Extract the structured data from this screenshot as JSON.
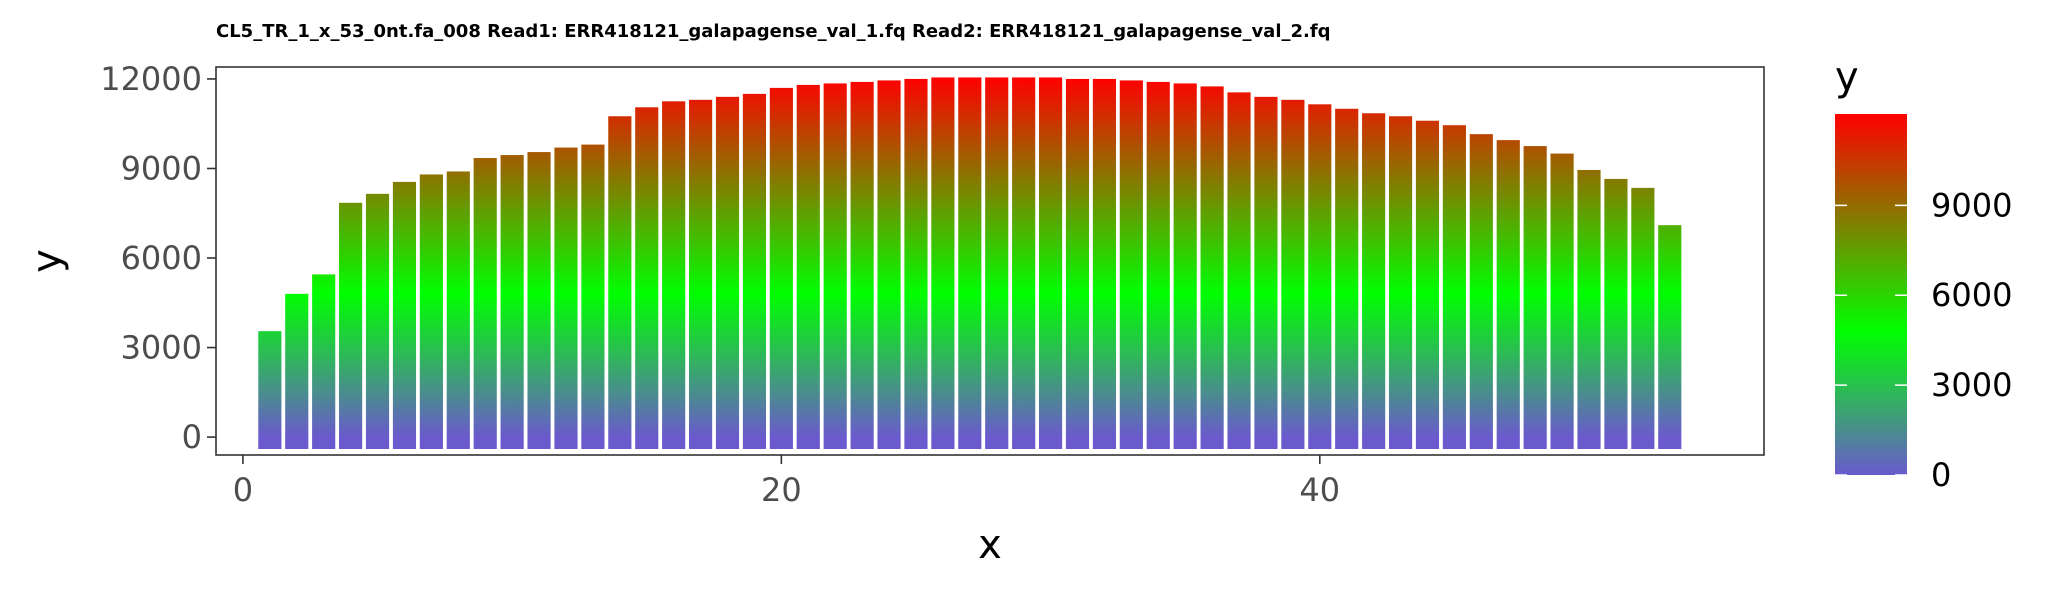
{
  "chart_data": {
    "type": "bar",
    "title": "CL5_TR_1_x_53_0nt.fa_008 Read1: ERR418121_galapagense_val_1.fq Read2: ERR418121_galapagense_val_2.fq",
    "xlabel": "x",
    "ylabel": "y",
    "xlim": [
      -1,
      56.5
    ],
    "ylim": [
      -600,
      12400
    ],
    "xticks": [
      0,
      20,
      40
    ],
    "yticks": [
      0,
      3000,
      6000,
      9000,
      12000
    ],
    "grid": false,
    "legend": {
      "title": "y",
      "position": "right",
      "type": "colorbar",
      "ticks": [
        0,
        3000,
        6000,
        9000
      ]
    },
    "color_scale": {
      "low": "#6a5acd",
      "mid": "#00ff00",
      "high": "#ff0000",
      "midpoint": 4800
    },
    "x": [
      1,
      2,
      3,
      4,
      5,
      6,
      7,
      8,
      9,
      10,
      11,
      12,
      13,
      14,
      15,
      16,
      17,
      18,
      19,
      20,
      21,
      22,
      23,
      24,
      25,
      26,
      27,
      28,
      29,
      30,
      31,
      32,
      33,
      34,
      35,
      36,
      37,
      38,
      39,
      40,
      41,
      42,
      43,
      44,
      45,
      46,
      47,
      48,
      49,
      50,
      51,
      52,
      53
    ],
    "values": [
      3550,
      4800,
      5450,
      7850,
      8150,
      8550,
      8800,
      8900,
      9350,
      9450,
      9550,
      9700,
      9800,
      10750,
      11050,
      11250,
      11300,
      11400,
      11500,
      11700,
      11800,
      11850,
      11900,
      11950,
      12000,
      12050,
      12050,
      12050,
      12050,
      12050,
      12000,
      12000,
      11950,
      11900,
      11850,
      11750,
      11550,
      11400,
      11300,
      11150,
      11000,
      10850,
      10750,
      10600,
      10450,
      10150,
      9950,
      9750,
      9500,
      8950,
      8650,
      8350,
      7100
    ]
  }
}
